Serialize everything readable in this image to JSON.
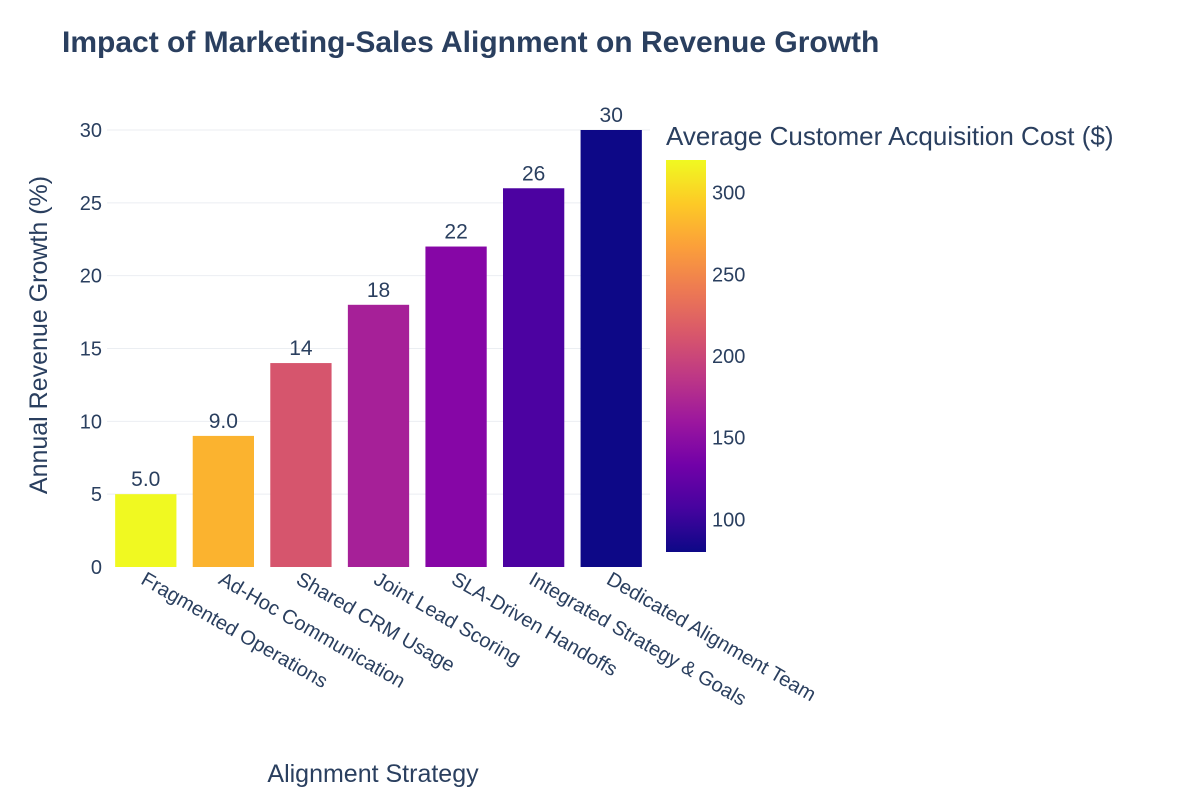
{
  "chart_data": {
    "type": "bar",
    "title": "Impact of Marketing-Sales Alignment on Revenue Growth",
    "xlabel": "Alignment Strategy",
    "ylabel": "Annual Revenue Growth (%)",
    "ylim": [
      0,
      30
    ],
    "yticks": [
      "0",
      "5",
      "10",
      "15",
      "20",
      "25",
      "30"
    ],
    "categories": [
      "Fragmented Operations",
      "Ad-Hoc Communication",
      "Shared CRM Usage",
      "Joint Lead Scoring",
      "SLA-Driven Handoffs",
      "Integrated Strategy & Goals",
      "Dedicated Alignment Team"
    ],
    "values": [
      5,
      9,
      14,
      18,
      22,
      26,
      30
    ],
    "value_labels": [
      "5.0",
      "9.0",
      "14",
      "18",
      "22",
      "26",
      "30"
    ],
    "color_values": [
      320,
      275,
      210,
      170,
      130,
      100,
      80
    ],
    "bar_colors": [
      "#f0f921",
      "#fbb32f",
      "#d6556d",
      "#a62098",
      "#8606a6",
      "#4c02a1",
      "#0d0887"
    ],
    "colorbar": {
      "title": "Average Customer Acquisition Cost ($)",
      "range": [
        80,
        320
      ],
      "ticks": [
        "100",
        "150",
        "200",
        "250",
        "300"
      ],
      "colorscale": [
        "#0d0887",
        "#46039f",
        "#7201a8",
        "#9c179e",
        "#bd3786",
        "#d8576b",
        "#ed7953",
        "#fb9f3a",
        "#fdca26",
        "#f0f921"
      ]
    },
    "grid": true,
    "legend": "colorbar-right"
  }
}
